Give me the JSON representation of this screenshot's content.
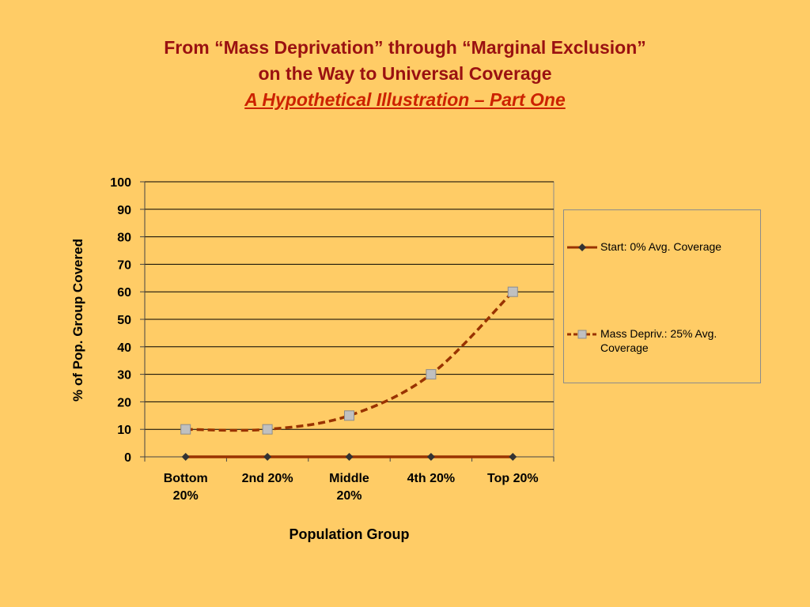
{
  "title_lines": [
    "From “Mass Deprivation” through “Marginal Exclusion”",
    "on the Way to Universal Coverage"
  ],
  "subtitle": "A Hypothetical Illustration – Part One",
  "colors": {
    "background": "#FFCC66",
    "title": "#9A1111",
    "subtitle": "#CC2200",
    "series_line": "#993300",
    "start_marker": "#333333",
    "mass_marker_fill": "#C0C0C0",
    "gridline": "#000000"
  },
  "chart_data": {
    "type": "line",
    "categories": [
      "Bottom 20%",
      "2nd 20%",
      "Middle 20%",
      "4th 20%",
      "Top 20%"
    ],
    "category_lines": [
      [
        "Bottom",
        "20%"
      ],
      [
        "2nd 20%"
      ],
      [
        "Middle",
        "20%"
      ],
      [
        "4th 20%"
      ],
      [
        "Top 20%"
      ]
    ],
    "series": [
      {
        "name": "Start: 0% Avg.  Coverage",
        "values": [
          0,
          0,
          0,
          0,
          0
        ],
        "style": "solid",
        "marker": "diamond"
      },
      {
        "name": "Mass Depriv.: 25% Avg. Coverage",
        "name_lines": [
          "Mass Depriv.: 25% Avg.",
          "Coverage"
        ],
        "values": [
          10,
          10,
          15,
          30,
          60
        ],
        "style": "dashed",
        "marker": "square"
      }
    ],
    "xlabel": "Population Group",
    "ylabel": "% of Pop. Group Covered",
    "ylim": [
      0,
      100
    ],
    "yticks": [
      0,
      10,
      20,
      30,
      40,
      50,
      60,
      70,
      80,
      90,
      100
    ],
    "grid": true,
    "legend": "right"
  }
}
